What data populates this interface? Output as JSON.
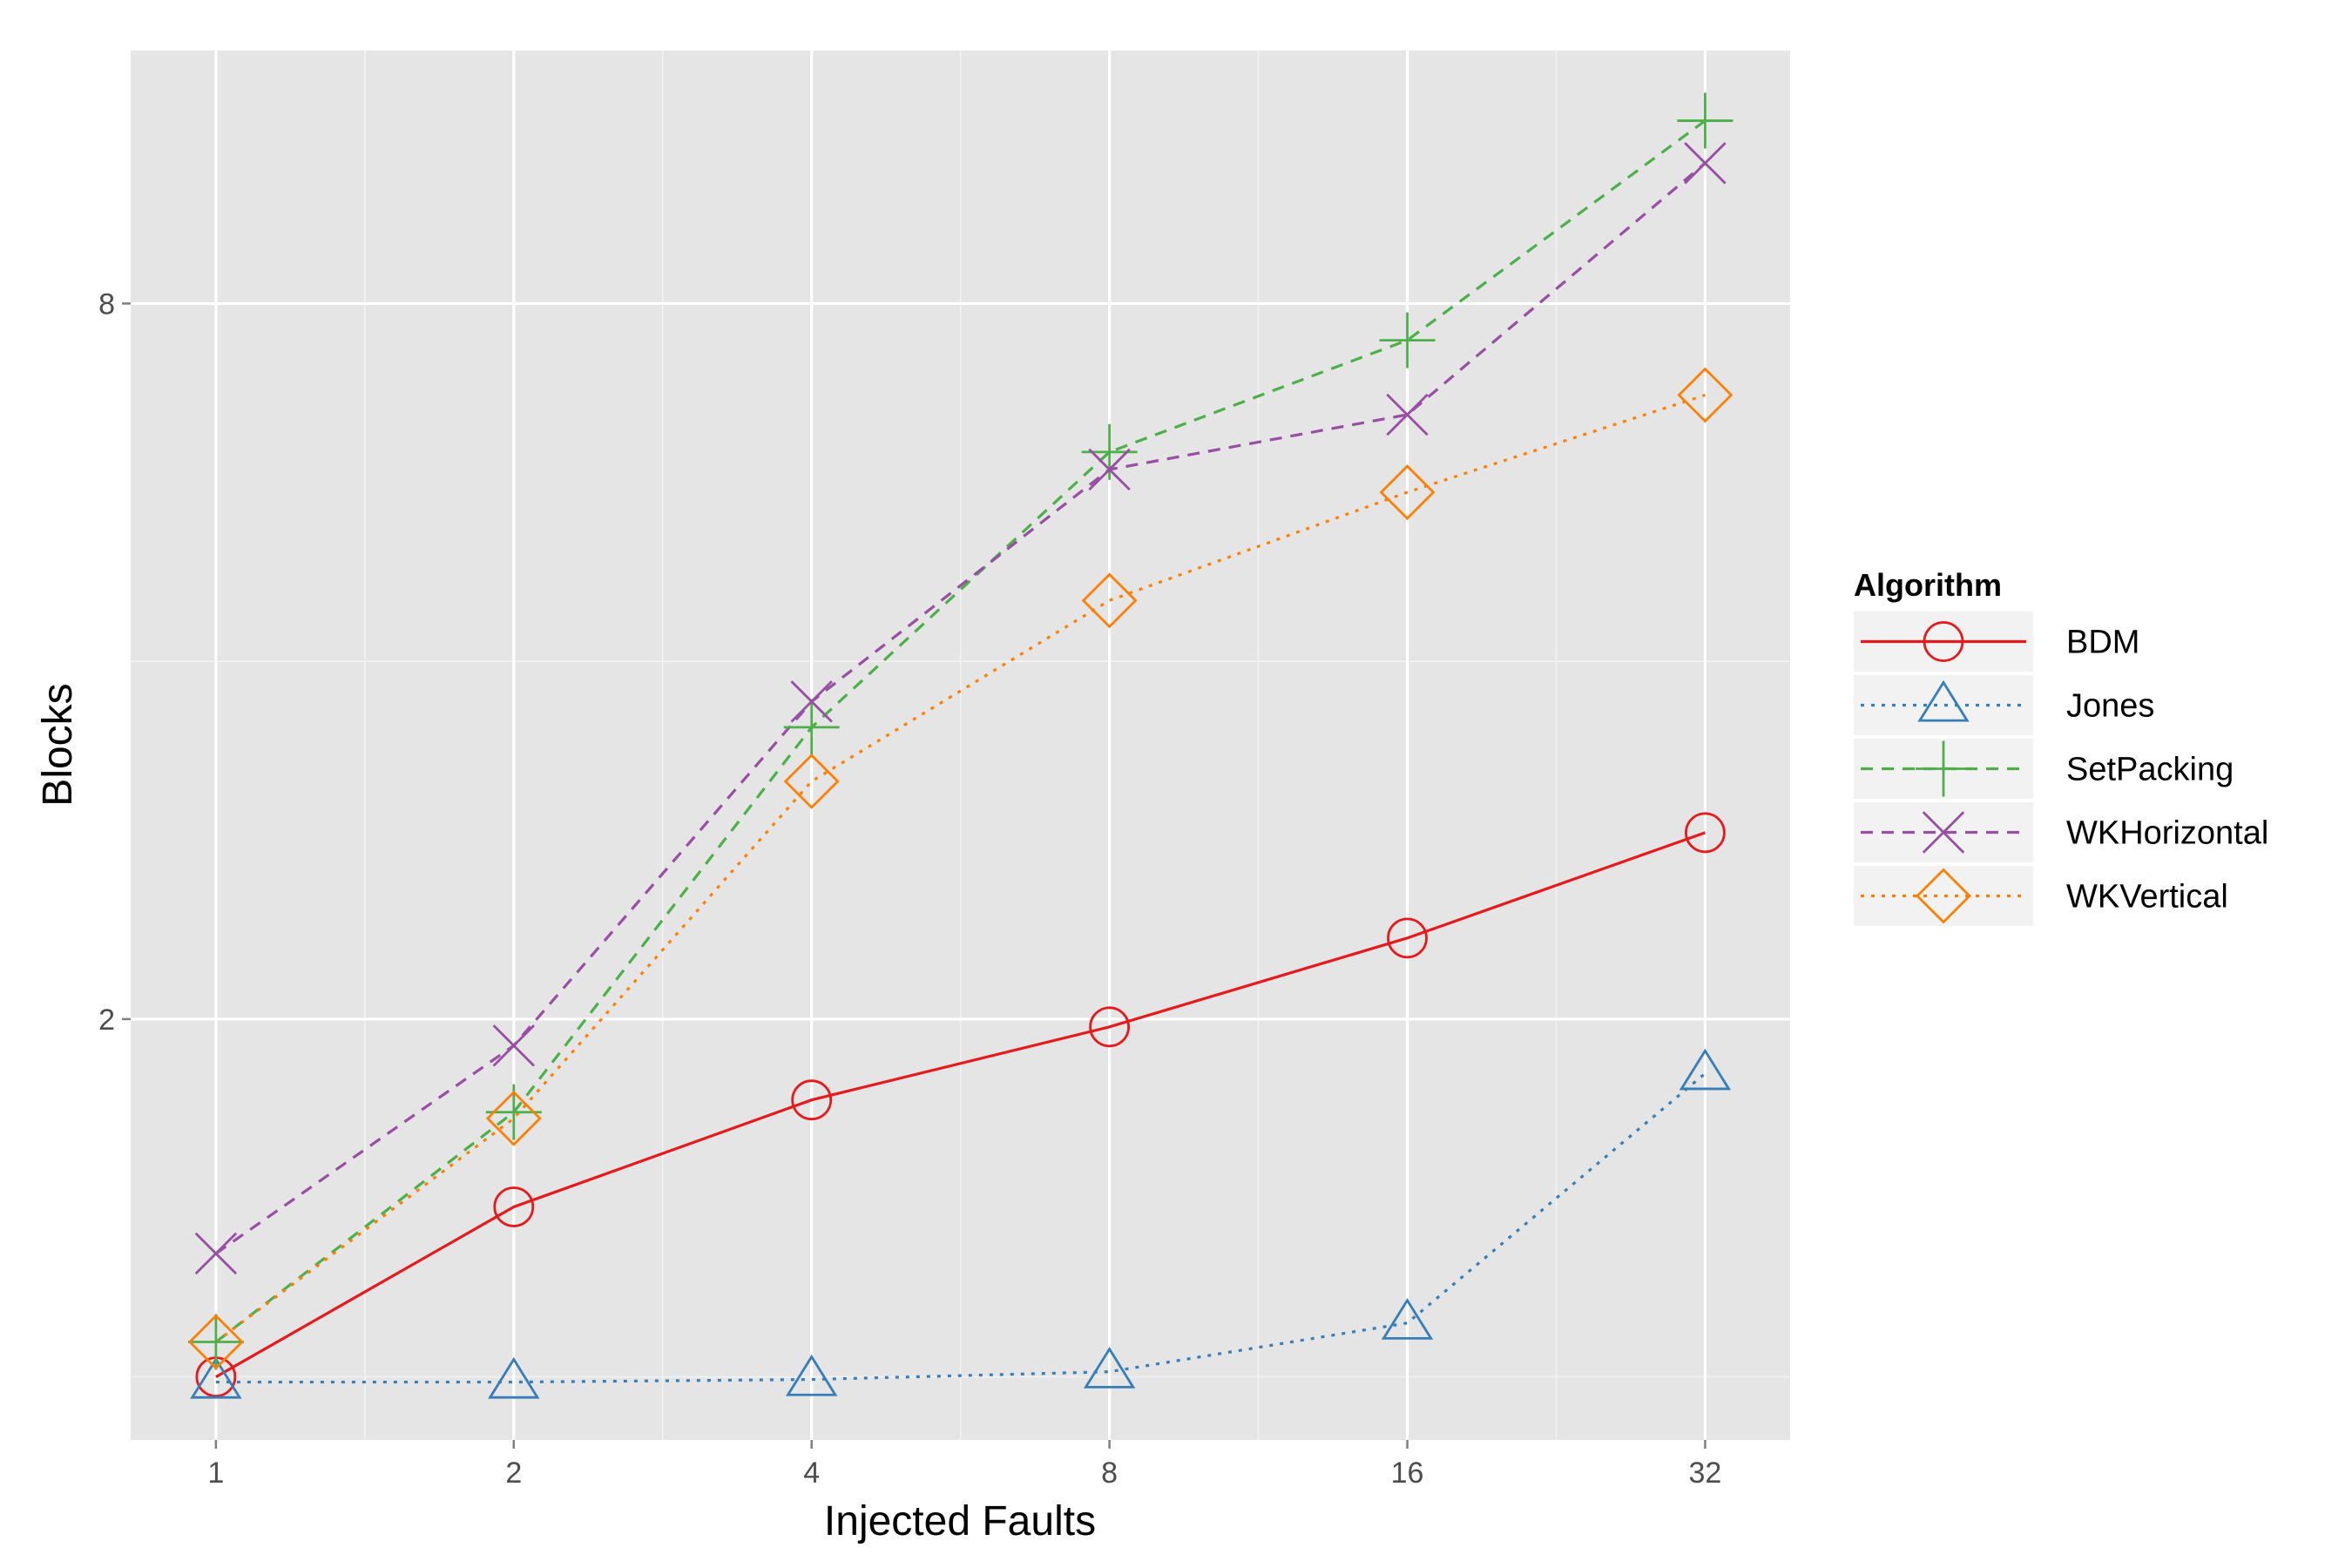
{
  "chart_data": {
    "type": "line",
    "xlabel": "Injected Faults",
    "ylabel": "Blocks",
    "x": [
      1,
      2,
      4,
      8,
      16,
      32
    ],
    "x_scale": "log2",
    "y_scale": "log2",
    "x_ticks": [
      {
        "value": 1,
        "label": "1"
      },
      {
        "value": 2,
        "label": "2"
      },
      {
        "value": 4,
        "label": "4"
      },
      {
        "value": 8,
        "label": "8"
      },
      {
        "value": 16,
        "label": "16"
      },
      {
        "value": 32,
        "label": "32"
      }
    ],
    "y_ticks": [
      {
        "value": 2,
        "label": "2"
      },
      {
        "value": 8,
        "label": "8"
      }
    ],
    "xlim": [
      0.82,
      39
    ],
    "ylim": [
      0.885,
      13.06
    ],
    "grid": true,
    "legend": {
      "title": "Algorithm",
      "position": "right"
    },
    "series": [
      {
        "name": "BDM",
        "color": "#e41a1c",
        "dash": "solid",
        "marker": "circle",
        "values": [
          1.0,
          1.39,
          1.71,
          1.97,
          2.34,
          2.87
        ]
      },
      {
        "name": "Jones",
        "color": "#377eb8",
        "dash": "dotted",
        "marker": "triangle",
        "values": [
          0.99,
          0.99,
          0.995,
          1.01,
          1.11,
          1.8
        ]
      },
      {
        "name": "SetPacking",
        "color": "#4daf4a",
        "dash": "dashed",
        "marker": "plus",
        "values": [
          1.07,
          1.67,
          3.52,
          6.0,
          7.45,
          11.4
        ]
      },
      {
        "name": "WKHorizontal",
        "color": "#984ea3",
        "dash": "dashed",
        "marker": "cross",
        "values": [
          1.27,
          1.9,
          3.7,
          5.8,
          6.45,
          10.5
        ]
      },
      {
        "name": "WKVertical",
        "color": "#ff7f00",
        "dash": "dotted",
        "marker": "diamond",
        "values": [
          1.07,
          1.65,
          3.17,
          4.5,
          5.55,
          6.7
        ]
      }
    ]
  }
}
